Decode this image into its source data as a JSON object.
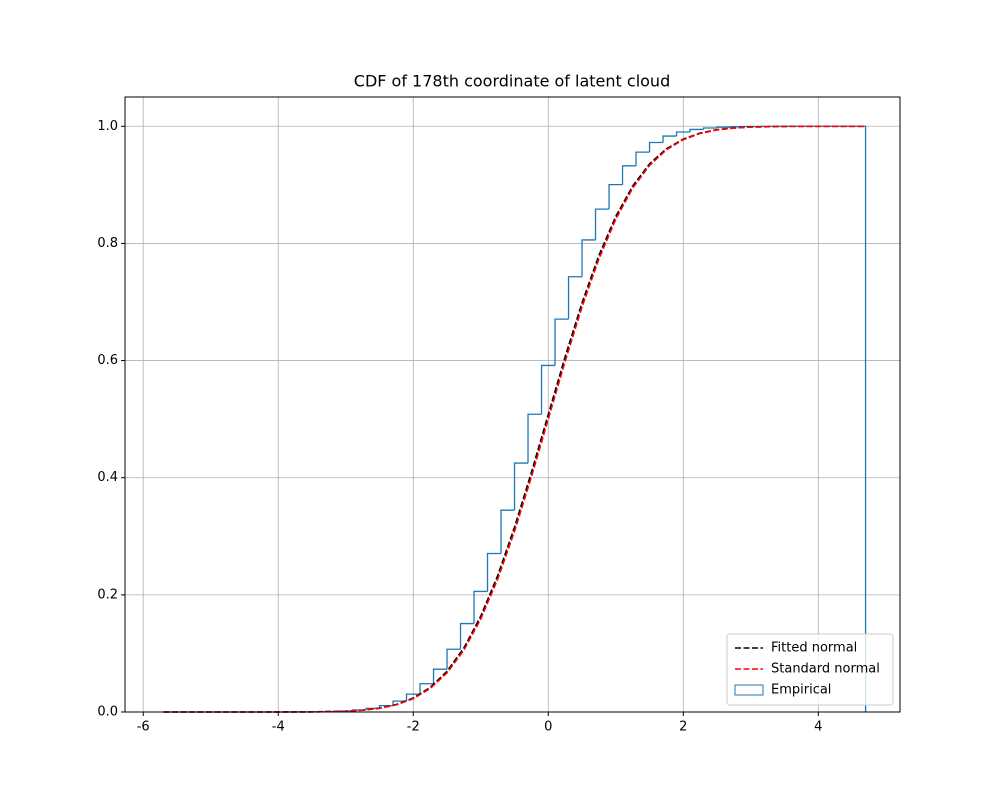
{
  "chart_data": {
    "type": "line",
    "title": "CDF of 178th coordinate of latent cloud",
    "x": [
      -5.7,
      -5,
      -4.5,
      -4,
      -3.5,
      -3,
      -2.75,
      -2.5,
      -2.25,
      -2,
      -1.75,
      -1.5,
      -1.25,
      -1,
      -0.75,
      -0.5,
      -0.25,
      0,
      0.25,
      0.5,
      0.75,
      1,
      1.25,
      1.5,
      1.75,
      2,
      2.25,
      2.5,
      2.75,
      3,
      3.5,
      4,
      4.7
    ],
    "series": [
      {
        "name": "Fitted normal",
        "color": "#000000",
        "values": [
          0,
          0,
          0,
          3e-05,
          0.0002,
          0.0014,
          0.0032,
          0.0066,
          0.0128,
          0.0239,
          0.0418,
          0.0694,
          0.1093,
          0.1636,
          0.2326,
          0.3155,
          0.4089,
          0.508,
          0.6065,
          0.6985,
          0.7795,
          0.8462,
          0.8979,
          0.9358,
          0.9616,
          0.9782,
          0.9884,
          0.9942,
          0.9972,
          0.9988,
          0.9998,
          1.0,
          1.0
        ]
      },
      {
        "name": "Standard normal",
        "color": "#ff0000",
        "values": [
          0,
          0,
          0,
          3e-05,
          0.0002,
          0.0013,
          0.003,
          0.0062,
          0.0122,
          0.0228,
          0.0401,
          0.0668,
          0.1056,
          0.1587,
          0.2266,
          0.3085,
          0.4013,
          0.5,
          0.5987,
          0.6915,
          0.7734,
          0.8413,
          0.8944,
          0.9332,
          0.9599,
          0.9772,
          0.9878,
          0.9938,
          0.997,
          0.9987,
          0.9998,
          1.0,
          1.0
        ]
      }
    ],
    "histogram": {
      "name": "Empirical",
      "color": "#1f77b4",
      "bins": [
        -5.7,
        -5.5,
        -5.3,
        -5.1,
        -4.9,
        -4.7,
        -4.5,
        -4.3,
        -4.1,
        -3.9,
        -3.7,
        -3.5,
        -3.3,
        -3.1,
        -2.9,
        -2.7,
        -2.5,
        -2.3,
        -2.1,
        -1.9,
        -1.7,
        -1.5,
        -1.3,
        -1.1,
        -0.9,
        -0.7,
        -0.5,
        -0.3,
        -0.1,
        0.1,
        0.3,
        0.5,
        0.7,
        0.9,
        1.1,
        1.3,
        1.5,
        1.7,
        1.9,
        2.1,
        2.3,
        2.5,
        2.7,
        2.9,
        3.1,
        3.3,
        3.5,
        3.7,
        3.9,
        4.1,
        4.3,
        4.5,
        4.7
      ],
      "values": [
        0,
        0,
        0,
        0,
        0,
        0,
        0,
        0,
        0,
        0.0001,
        0.0002,
        0.0004,
        0.0008,
        0.0017,
        0.0033,
        0.0061,
        0.0109,
        0.0186,
        0.0305,
        0.0482,
        0.0731,
        0.1071,
        0.151,
        0.2058,
        0.2706,
        0.3446,
        0.425,
        0.5084,
        0.5917,
        0.6708,
        0.7431,
        0.806,
        0.8586,
        0.9004,
        0.9325,
        0.9559,
        0.9723,
        0.9833,
        0.9903,
        0.9946,
        0.9971,
        0.9985,
        0.9993,
        0.9996,
        0.9998,
        0.9999,
        0.9999,
        0.9999,
        1,
        1,
        1,
        1
      ]
    },
    "xlim": [
      -6.27,
      5.21
    ],
    "ylim": [
      0,
      1.05
    ],
    "xticks": [
      -6,
      -4,
      -2,
      0,
      2,
      4
    ],
    "yticks": [
      {
        "value": 0,
        "label": "0.0"
      },
      0.2,
      0.4,
      0.6,
      0.8,
      {
        "value": 1,
        "label": "1.0"
      }
    ],
    "grid": true,
    "legend": "lower right"
  }
}
